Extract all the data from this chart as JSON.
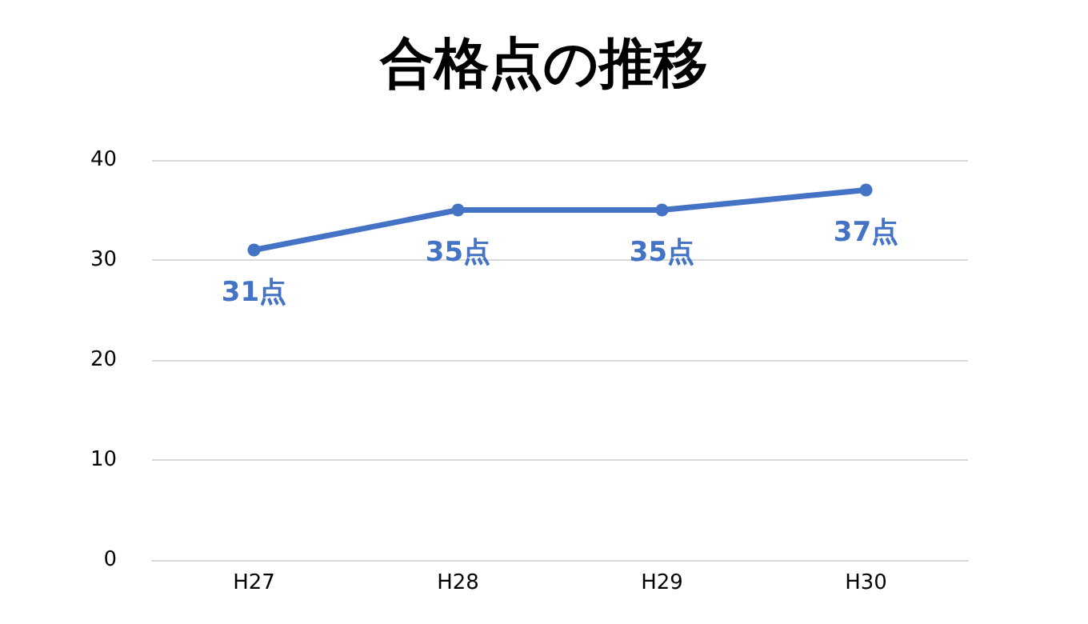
{
  "chart_data": {
    "type": "line",
    "title": "合格点の推移",
    "categories": [
      "H27",
      "H28",
      "H29",
      "H30"
    ],
    "series": [
      {
        "color": "#4472c4",
        "values": [
          31,
          35,
          35,
          37
        ],
        "value_labels": [
          "31点",
          "35点",
          "35点",
          "37点"
        ]
      }
    ],
    "ylim": [
      0,
      40
    ],
    "yticks": [
      0,
      10,
      20,
      30,
      40
    ],
    "grid": "y",
    "marker": "circle",
    "line_style": "solid"
  }
}
